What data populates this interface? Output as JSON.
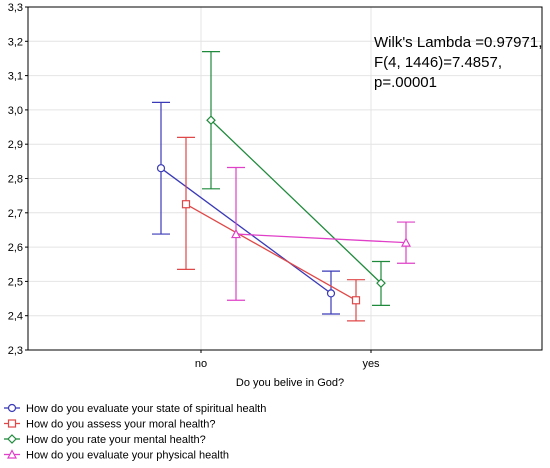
{
  "chart_data": {
    "type": "line",
    "xlabel": "Do you belive in God?",
    "categories": [
      "no",
      "yes"
    ],
    "ylim": [
      2.3,
      3.3
    ],
    "yticks": [
      "2,3",
      "2,4",
      "2,5",
      "2,6",
      "2,7",
      "2,8",
      "2,9",
      "3,0",
      "3,1",
      "3,2",
      "3,3"
    ],
    "grid": true,
    "annotation": [
      "Wilk's Lambda =0.97971,",
      "F(4, 1446)=7.4857,",
      "p=.00001"
    ],
    "legend_position": "bottom",
    "series": [
      {
        "name": "How do you evaluate your state of spiritual health",
        "color": "#3a3ab8",
        "marker": "circle",
        "values": [
          2.83,
          2.465
        ],
        "error_low": [
          2.638,
          2.405
        ],
        "error_high": [
          3.022,
          2.53
        ]
      },
      {
        "name": "How do you assess your moral health?",
        "color": "#e04848",
        "marker": "square",
        "values": [
          2.725,
          2.445
        ],
        "error_low": [
          2.535,
          2.385
        ],
        "error_high": [
          2.92,
          2.505
        ]
      },
      {
        "name": "How do you rate your mental health?",
        "color": "#1f8a3c",
        "marker": "diamond",
        "values": [
          2.97,
          2.495
        ],
        "error_low": [
          2.77,
          2.43
        ],
        "error_high": [
          3.17,
          2.558
        ]
      },
      {
        "name": "How do you evaluate your physical health",
        "color": "#e040c8",
        "marker": "triangle",
        "values": [
          2.638,
          2.613
        ],
        "error_low": [
          2.445,
          2.553
        ],
        "error_high": [
          2.832,
          2.673
        ]
      }
    ]
  }
}
